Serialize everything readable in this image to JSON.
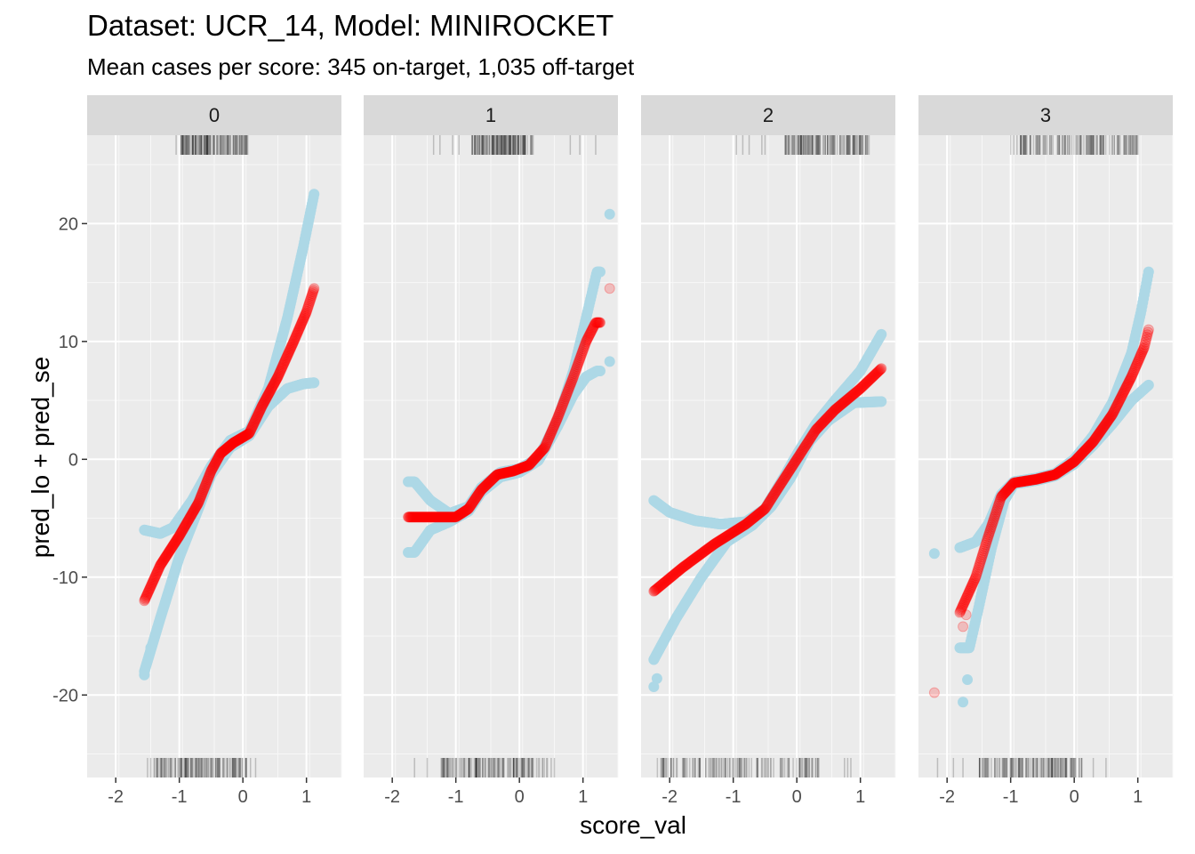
{
  "chart_data": {
    "type": "scatter",
    "title": "Dataset: UCR_14, Model: MINIROCKET",
    "subtitle": "Mean cases per score: 345 on-target, 1,035 off-target",
    "xlabel": "score_val",
    "ylabel": "pred_lo + pred_se",
    "xlim": [
      -2.45,
      1.55
    ],
    "ylim": [
      -27,
      27.5
    ],
    "x_ticks": [
      -2,
      -1,
      0,
      1
    ],
    "y_ticks": [
      -20,
      -10,
      0,
      10,
      20
    ],
    "grid": true,
    "legend": "none",
    "colors": {
      "band": "#add8e6",
      "fit": "#ff0000",
      "rug": "#000000",
      "panel_bg": "#ebebeb",
      "strip_bg": "#d9d9d9"
    },
    "panels": [
      {
        "label": "0",
        "x_range": [
          -1.55,
          1.12
        ],
        "fit": [
          [
            -1.55,
            -12.0
          ],
          [
            -1.3,
            -9.0
          ],
          [
            -1.0,
            -6.5
          ],
          [
            -0.7,
            -3.7
          ],
          [
            -0.5,
            -1.0
          ],
          [
            -0.35,
            0.5
          ],
          [
            -0.15,
            1.4
          ],
          [
            0.1,
            2.2
          ],
          [
            0.3,
            4.5
          ],
          [
            0.55,
            7.0
          ],
          [
            0.8,
            10.0
          ],
          [
            1.0,
            12.5
          ],
          [
            1.12,
            14.5
          ]
        ],
        "upper": [
          [
            -1.55,
            -6.0
          ],
          [
            -1.3,
            -6.3
          ],
          [
            -1.1,
            -5.8
          ],
          [
            -0.8,
            -3.5
          ],
          [
            -0.5,
            -0.6
          ],
          [
            -0.2,
            1.6
          ],
          [
            0.1,
            2.4
          ],
          [
            0.4,
            6.0
          ],
          [
            0.7,
            12.0
          ],
          [
            0.95,
            18.0
          ],
          [
            1.12,
            22.5
          ]
        ],
        "lower": [
          [
            -1.55,
            -18.0
          ],
          [
            -1.3,
            -13.5
          ],
          [
            -1.0,
            -8.3
          ],
          [
            -0.7,
            -4.2
          ],
          [
            -0.5,
            -1.3
          ],
          [
            -0.2,
            1.0
          ],
          [
            0.1,
            2.0
          ],
          [
            0.4,
            4.5
          ],
          [
            0.7,
            6.0
          ],
          [
            0.95,
            6.4
          ],
          [
            1.12,
            6.5
          ]
        ],
        "outliers_upper": [],
        "outliers_lower": [
          [
            -1.55,
            -18.3
          ],
          [
            -1.45,
            -16.0
          ]
        ],
        "outliers_fit": [],
        "rug_top": [
          -0.98,
          0.08
        ],
        "rug_bottom": [
          -1.4,
          0.08
        ],
        "sparse_top": [
          -1.05,
          -0.97,
          -0.92
        ],
        "sparse_bottom": [
          -1.5,
          -1.45,
          0.12,
          0.2
        ]
      },
      {
        "label": "1",
        "x_range": [
          -1.75,
          1.27
        ],
        "fit": [
          [
            -1.6,
            -4.9
          ],
          [
            -1.3,
            -4.9
          ],
          [
            -1.0,
            -4.9
          ],
          [
            -0.8,
            -4.2
          ],
          [
            -0.6,
            -2.6
          ],
          [
            -0.35,
            -1.3
          ],
          [
            -0.1,
            -1.0
          ],
          [
            0.15,
            -0.5
          ],
          [
            0.4,
            1.0
          ],
          [
            0.6,
            3.5
          ],
          [
            0.85,
            7.0
          ],
          [
            1.05,
            10.0
          ],
          [
            1.2,
            11.6
          ]
        ],
        "upper": [
          [
            -1.65,
            -1.9
          ],
          [
            -1.4,
            -3.5
          ],
          [
            -1.1,
            -4.6
          ],
          [
            -0.8,
            -4.0
          ],
          [
            -0.6,
            -2.4
          ],
          [
            -0.3,
            -1.1
          ],
          [
            0.0,
            -0.8
          ],
          [
            0.3,
            0.1
          ],
          [
            0.6,
            3.3
          ],
          [
            0.85,
            7.5
          ],
          [
            1.05,
            12.0
          ],
          [
            1.22,
            15.9
          ]
        ],
        "lower": [
          [
            -1.65,
            -7.9
          ],
          [
            -1.4,
            -6.0
          ],
          [
            -1.1,
            -5.3
          ],
          [
            -0.8,
            -4.4
          ],
          [
            -0.6,
            -2.8
          ],
          [
            -0.3,
            -1.5
          ],
          [
            0.0,
            -1.1
          ],
          [
            0.3,
            -0.1
          ],
          [
            0.6,
            2.8
          ],
          [
            0.85,
            5.5
          ],
          [
            1.05,
            7.0
          ],
          [
            1.22,
            7.5
          ]
        ],
        "outliers_upper": [
          [
            1.42,
            20.8
          ]
        ],
        "outliers_lower": [
          [
            1.42,
            8.3
          ]
        ],
        "outliers_fit": [
          [
            1.42,
            14.5
          ]
        ],
        "rug_top": [
          -0.75,
          0.25
        ],
        "rug_bottom": [
          -1.3,
          0.45
        ],
        "sparse_top": [
          -1.35,
          -1.25,
          -1.05,
          -0.95,
          0.8,
          0.95,
          1.2
        ],
        "sparse_bottom": [
          -1.65,
          -1.45,
          0.5,
          0.55
        ]
      },
      {
        "label": "2",
        "x_range": [
          -2.25,
          1.33
        ],
        "fit": [
          [
            -2.25,
            -11.2
          ],
          [
            -1.8,
            -9.2
          ],
          [
            -1.3,
            -7.2
          ],
          [
            -0.8,
            -5.5
          ],
          [
            -0.5,
            -4.2
          ],
          [
            -0.3,
            -2.5
          ],
          [
            0.0,
            0.0
          ],
          [
            0.3,
            2.5
          ],
          [
            0.6,
            4.2
          ],
          [
            1.0,
            6.0
          ],
          [
            1.33,
            7.7
          ]
        ],
        "upper": [
          [
            -2.25,
            -3.5
          ],
          [
            -2.0,
            -4.5
          ],
          [
            -1.6,
            -5.2
          ],
          [
            -1.2,
            -5.5
          ],
          [
            -0.8,
            -5.3
          ],
          [
            -0.5,
            -4.2
          ],
          [
            -0.2,
            -1.5
          ],
          [
            0.0,
            0.4
          ],
          [
            0.3,
            3.0
          ],
          [
            0.6,
            5.0
          ],
          [
            1.0,
            7.5
          ],
          [
            1.33,
            10.6
          ]
        ],
        "lower": [
          [
            -2.25,
            -17.0
          ],
          [
            -1.9,
            -13.5
          ],
          [
            -1.5,
            -10.0
          ],
          [
            -1.1,
            -7.0
          ],
          [
            -0.7,
            -5.6
          ],
          [
            -0.4,
            -4.0
          ],
          [
            -0.1,
            -1.6
          ],
          [
            0.2,
            1.5
          ],
          [
            0.5,
            3.3
          ],
          [
            0.9,
            4.8
          ],
          [
            1.33,
            4.9
          ]
        ],
        "outliers_upper": [],
        "outliers_lower": [
          [
            -2.25,
            -19.3
          ],
          [
            -2.2,
            -18.6
          ]
        ],
        "outliers_fit": [],
        "rug_top": [
          -0.2,
          1.15
        ],
        "rug_bottom": [
          -2.2,
          0.35
        ],
        "sparse_top": [
          -0.95,
          -0.85,
          -0.75,
          -0.55,
          -0.5
        ],
        "sparse_bottom": [
          0.75,
          0.8,
          0.85
        ]
      },
      {
        "label": "3",
        "x_range": [
          -1.8,
          1.17
        ],
        "fit": [
          [
            -1.8,
            -13.0
          ],
          [
            -1.55,
            -10.0
          ],
          [
            -1.35,
            -6.5
          ],
          [
            -1.15,
            -3.2
          ],
          [
            -0.95,
            -2.0
          ],
          [
            -0.6,
            -1.7
          ],
          [
            -0.3,
            -1.3
          ],
          [
            0.0,
            -0.2
          ],
          [
            0.3,
            1.5
          ],
          [
            0.6,
            3.8
          ],
          [
            0.9,
            7.0
          ],
          [
            1.1,
            9.5
          ],
          [
            1.17,
            11.0
          ]
        ],
        "upper": [
          [
            -1.8,
            -7.5
          ],
          [
            -1.55,
            -7.0
          ],
          [
            -1.35,
            -5.5
          ],
          [
            -1.15,
            -3.0
          ],
          [
            -0.95,
            -1.9
          ],
          [
            -0.6,
            -1.6
          ],
          [
            -0.3,
            -1.2
          ],
          [
            0.0,
            0.0
          ],
          [
            0.3,
            2.0
          ],
          [
            0.6,
            4.8
          ],
          [
            0.9,
            9.0
          ],
          [
            1.05,
            12.5
          ],
          [
            1.17,
            15.9
          ]
        ],
        "lower": [
          [
            -1.65,
            -16.0
          ],
          [
            -1.5,
            -12.5
          ],
          [
            -1.3,
            -7.5
          ],
          [
            -1.1,
            -3.5
          ],
          [
            -0.95,
            -2.1
          ],
          [
            -0.6,
            -1.8
          ],
          [
            -0.3,
            -1.4
          ],
          [
            0.0,
            -0.4
          ],
          [
            0.3,
            1.2
          ],
          [
            0.6,
            3.0
          ],
          [
            0.9,
            5.0
          ],
          [
            1.17,
            6.3
          ]
        ],
        "outliers_upper": [
          [
            -2.2,
            -8.0
          ]
        ],
        "outliers_lower": [
          [
            -1.75,
            -20.6
          ],
          [
            -1.68,
            -18.7
          ]
        ],
        "outliers_fit": [
          [
            -2.2,
            -19.8
          ],
          [
            -1.75,
            -14.2
          ],
          [
            -1.7,
            -13.2
          ]
        ],
        "rug_top": [
          -0.85,
          1.05
        ],
        "rug_bottom": [
          -1.5,
          0.15
        ],
        "sparse_top": [
          -1.0,
          -0.95,
          -0.9
        ],
        "sparse_bottom": [
          -2.15,
          -1.9,
          -1.75,
          0.3,
          0.5
        ]
      }
    ]
  }
}
